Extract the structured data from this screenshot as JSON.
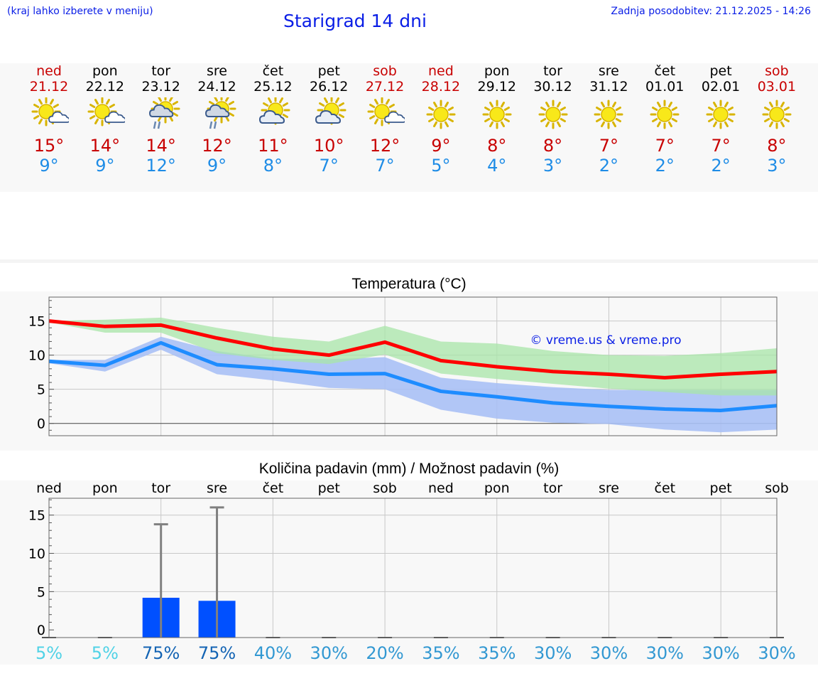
{
  "header": {
    "menu_hint": "(kraj lahko izberete v meniju)",
    "title": "Starigrad 14 dni",
    "updated": "Zadnja posodobitev: 21.12.2025 - 14:26"
  },
  "colors": {
    "accent_blue": "#0a1ee6",
    "weekend_red": "#c80000",
    "max_line": "#ff0000",
    "min_line": "#1e8cff",
    "max_band": "#a8e6a8",
    "min_band": "#a8c0f5",
    "precip_bar": "#0050ff"
  },
  "days": [
    {
      "name": "ned",
      "date": "21.12",
      "weekend": true,
      "icon": "sun-cloud-icon",
      "max": "15°",
      "min": "9°"
    },
    {
      "name": "pon",
      "date": "22.12",
      "weekend": false,
      "icon": "sun-cloud-icon",
      "max": "14°",
      "min": "9°"
    },
    {
      "name": "tor",
      "date": "23.12",
      "weekend": false,
      "icon": "sun-rain-icon",
      "max": "14°",
      "min": "12°"
    },
    {
      "name": "sre",
      "date": "24.12",
      "weekend": false,
      "icon": "sun-rain-icon",
      "max": "12°",
      "min": "9°"
    },
    {
      "name": "čet",
      "date": "25.12",
      "weekend": false,
      "icon": "sun-bigcloud-icon",
      "max": "11°",
      "min": "8°"
    },
    {
      "name": "pet",
      "date": "26.12",
      "weekend": false,
      "icon": "sun-bigcloud-icon",
      "max": "10°",
      "min": "7°"
    },
    {
      "name": "sob",
      "date": "27.12",
      "weekend": true,
      "icon": "sun-cloud-icon",
      "max": "12°",
      "min": "7°"
    },
    {
      "name": "ned",
      "date": "28.12",
      "weekend": true,
      "icon": "sun-icon",
      "max": "9°",
      "min": "5°"
    },
    {
      "name": "pon",
      "date": "29.12",
      "weekend": false,
      "icon": "sun-icon",
      "max": "8°",
      "min": "4°"
    },
    {
      "name": "tor",
      "date": "30.12",
      "weekend": false,
      "icon": "sun-icon",
      "max": "8°",
      "min": "3°"
    },
    {
      "name": "sre",
      "date": "31.12",
      "weekend": false,
      "icon": "sun-icon",
      "max": "7°",
      "min": "2°"
    },
    {
      "name": "čet",
      "date": "01.01",
      "weekend": false,
      "icon": "sun-icon",
      "max": "7°",
      "min": "2°"
    },
    {
      "name": "pet",
      "date": "02.01",
      "weekend": false,
      "icon": "sun-icon",
      "max": "7°",
      "min": "2°"
    },
    {
      "name": "sob",
      "date": "03.01",
      "weekend": true,
      "icon": "sun-icon",
      "max": "8°",
      "min": "3°"
    }
  ],
  "chart_data": [
    {
      "type": "line",
      "title": "Temperatura (°C)",
      "watermark": "© vreme.us & vreme.pro",
      "x": [
        0,
        1,
        2,
        3,
        4,
        5,
        6,
        7,
        8,
        9,
        10,
        11,
        12,
        13
      ],
      "ylim": [
        -1.8,
        18.5
      ],
      "yticks": [
        0,
        5,
        10,
        15
      ],
      "grid": true,
      "series": [
        {
          "name": "max",
          "values": [
            15.0,
            14.2,
            14.4,
            12.5,
            10.9,
            10.0,
            11.9,
            9.2,
            8.3,
            7.6,
            7.2,
            6.7,
            7.2,
            7.6
          ],
          "band_low": [
            14.8,
            13.3,
            13.3,
            10.3,
            9.3,
            8.7,
            10.1,
            7.3,
            6.5,
            5.8,
            5.1,
            4.6,
            4.1,
            4.1
          ],
          "band_high": [
            15.0,
            15.2,
            15.5,
            14.0,
            12.7,
            12.0,
            14.3,
            12.0,
            11.7,
            10.6,
            10.0,
            9.9,
            10.3,
            11.0
          ]
        },
        {
          "name": "min",
          "values": [
            9.1,
            8.5,
            11.8,
            8.6,
            8.0,
            7.2,
            7.3,
            4.7,
            3.9,
            3.0,
            2.5,
            2.1,
            1.9,
            2.6
          ],
          "band_low": [
            8.8,
            7.6,
            10.8,
            7.2,
            6.3,
            5.2,
            5.0,
            2.0,
            0.7,
            0.1,
            -0.1,
            -0.9,
            -1.3,
            -0.9
          ],
          "band_high": [
            9.3,
            9.3,
            12.7,
            10.6,
            9.5,
            9.4,
            9.7,
            6.7,
            5.9,
            5.3,
            4.9,
            4.9,
            4.9,
            4.9
          ]
        }
      ]
    },
    {
      "type": "bar",
      "title": "Količina padavin (mm) / Možnost padavin (%)",
      "categories": [
        "ned",
        "pon",
        "tor",
        "sre",
        "čet",
        "pet",
        "sob",
        "ned",
        "pon",
        "tor",
        "sre",
        "čet",
        "pet",
        "sob"
      ],
      "values": [
        0,
        0,
        4.2,
        3.8,
        0,
        0,
        0,
        0,
        0,
        0,
        0,
        0,
        0,
        0
      ],
      "error_high": [
        0,
        0,
        13.8,
        16.0,
        0,
        0,
        0,
        0,
        0,
        0,
        0,
        0,
        0,
        0
      ],
      "ylim": [
        -1,
        17.2
      ],
      "yticks": [
        0,
        5,
        10,
        15
      ],
      "probability": [
        "5%",
        "5%",
        "75%",
        "75%",
        "40%",
        "30%",
        "20%",
        "35%",
        "35%",
        "30%",
        "30%",
        "30%",
        "30%",
        "30%"
      ],
      "probability_values": [
        5,
        5,
        75,
        75,
        40,
        30,
        20,
        35,
        35,
        30,
        30,
        30,
        30,
        30
      ]
    }
  ]
}
